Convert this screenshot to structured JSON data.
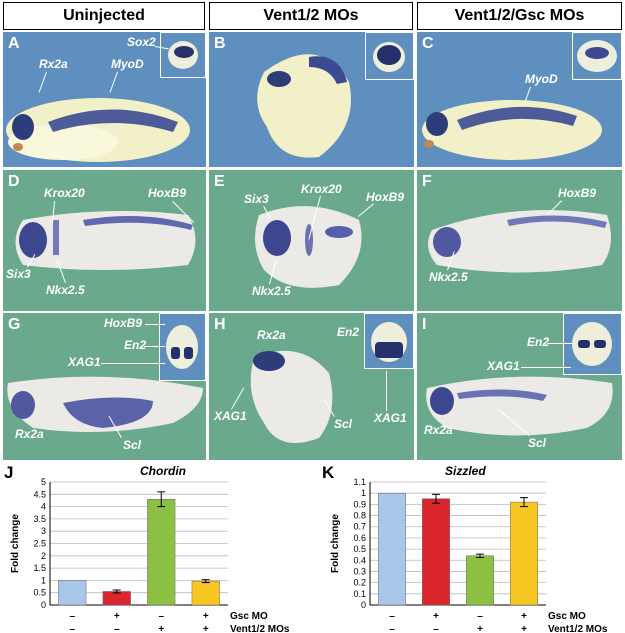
{
  "headers": [
    "Uninjected",
    "Vent1/2 MOs",
    "Vent1/2/Gsc MOs"
  ],
  "panels": {
    "A": {
      "label": "A",
      "genes": [
        "Rx2a",
        "MyoD",
        "Sox2"
      ]
    },
    "B": {
      "label": "B"
    },
    "C": {
      "label": "C",
      "genes": [
        "MyoD"
      ]
    },
    "D": {
      "label": "D",
      "genes": [
        "Krox20",
        "HoxB9",
        "Six3",
        "Nkx2.5"
      ]
    },
    "E": {
      "label": "E",
      "genes": [
        "Six3",
        "Krox20",
        "HoxB9",
        "Nkx2.5"
      ]
    },
    "F": {
      "label": "F",
      "genes": [
        "HoxB9",
        "Nkx2.5"
      ]
    },
    "G": {
      "label": "G",
      "genes": [
        "HoxB9",
        "En2",
        "XAG1",
        "Rx2a",
        "Scl"
      ]
    },
    "H": {
      "label": "H",
      "genes": [
        "Rx2a",
        "En2",
        "XAG1",
        "XAG1",
        "Scl"
      ]
    },
    "I": {
      "label": "I",
      "genes": [
        "En2",
        "XAG1",
        "Rx2a",
        "Scl"
      ]
    }
  },
  "colors": {
    "blue_bg": "#5f8fbf",
    "green_bg": "#6aa98c",
    "bar_blue": "#a9c7e8",
    "bar_red": "#d9252b",
    "bar_green": "#8cc043",
    "bar_yellow": "#f7c623"
  },
  "chart_data": [
    {
      "panel_label": "J",
      "type": "bar",
      "title": "Chordin",
      "ylabel": "Fold change",
      "ylim": [
        0,
        5
      ],
      "yticks": [
        "0",
        "0.5",
        "1",
        "1.5",
        "2",
        "2.5",
        "3",
        "3.5",
        "4",
        "4.5",
        "5"
      ],
      "values": [
        1.0,
        0.55,
        4.3,
        0.97
      ],
      "errors": [
        0,
        0.06,
        0.3,
        0.06
      ],
      "bar_colors": [
        "#a9c7e8",
        "#d9252b",
        "#8cc043",
        "#f7c623"
      ],
      "conditions": {
        "row1_label": "Gsc MO",
        "row1": [
          "–",
          "+",
          "–",
          "+"
        ],
        "row2_label": "Vent1/2 MOs",
        "row2": [
          "–",
          "–",
          "+",
          "+"
        ]
      }
    },
    {
      "panel_label": "K",
      "type": "bar",
      "title": "Sizzled",
      "ylabel": "Fold change",
      "ylim": [
        0,
        1.1
      ],
      "yticks": [
        "0",
        "0.1",
        "0.2",
        "0.3",
        "0.4",
        "0.5",
        "0.6",
        "0.7",
        "0.8",
        "0.9",
        "1",
        "1.1"
      ],
      "values": [
        1.0,
        0.95,
        0.44,
        0.92
      ],
      "errors": [
        0,
        0.04,
        0.015,
        0.04
      ],
      "bar_colors": [
        "#a9c7e8",
        "#d9252b",
        "#8cc043",
        "#f7c623"
      ],
      "conditions": {
        "row1_label": "Gsc MO",
        "row1": [
          "–",
          "+",
          "–",
          "+"
        ],
        "row2_label": "Vent1/2 MOs",
        "row2": [
          "–",
          "–",
          "+",
          "+"
        ]
      }
    }
  ]
}
